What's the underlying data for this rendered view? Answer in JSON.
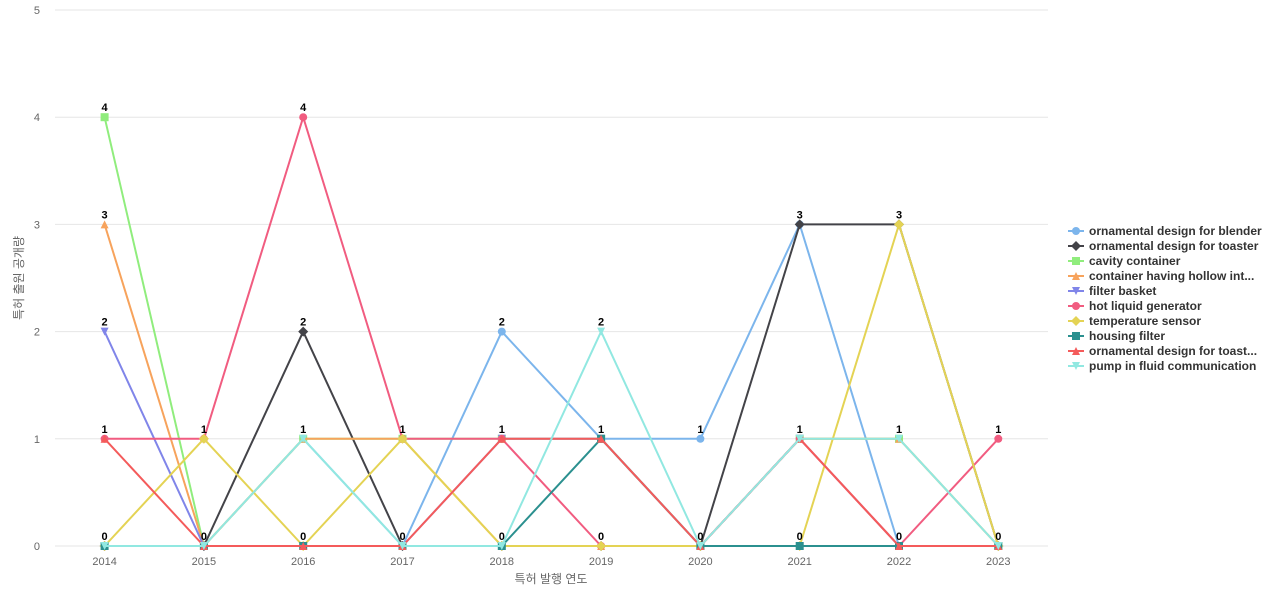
{
  "chart_data": {
    "type": "line",
    "title": "",
    "xlabel": "특허 발행 연도",
    "ylabel": "특허 출원 공개량",
    "x": [
      "2014",
      "2015",
      "2016",
      "2017",
      "2018",
      "2019",
      "2020",
      "2021",
      "2022",
      "2023"
    ],
    "yticks": [
      "0",
      "1",
      "2",
      "3",
      "4",
      "5"
    ],
    "ylim": [
      0,
      5
    ],
    "grid": true,
    "legend_position": "right",
    "series": [
      {
        "name": "ornamental design for blender",
        "color": "#7cb5ec",
        "marker": "circle",
        "values": [
          0,
          0,
          1,
          0,
          2,
          1,
          1,
          3,
          0,
          0
        ]
      },
      {
        "name": "ornamental design for toaster",
        "color": "#434348",
        "marker": "diamond",
        "values": [
          0,
          0,
          2,
          0,
          0,
          0,
          0,
          3,
          3,
          0
        ]
      },
      {
        "name": "cavity container",
        "color": "#90ed7d",
        "marker": "square",
        "values": [
          4,
          0,
          1,
          1,
          1,
          1,
          0,
          1,
          1,
          0
        ]
      },
      {
        "name": "container having hollow int...",
        "color": "#f7a35c",
        "marker": "triangle",
        "values": [
          3,
          0,
          1,
          1,
          0,
          0,
          0,
          1,
          1,
          0
        ]
      },
      {
        "name": "filter basket",
        "color": "#8085e9",
        "marker": "triangle-down",
        "values": [
          2,
          0,
          0,
          0,
          1,
          1,
          0,
          1,
          0,
          0
        ]
      },
      {
        "name": "hot liquid generator",
        "color": "#f15c80",
        "marker": "circle",
        "values": [
          1,
          1,
          4,
          1,
          1,
          0,
          0,
          1,
          0,
          1
        ]
      },
      {
        "name": "temperature sensor",
        "color": "#e4d354",
        "marker": "diamond",
        "values": [
          0,
          1,
          0,
          1,
          0,
          0,
          0,
          0,
          3,
          0
        ]
      },
      {
        "name": "housing filter",
        "color": "#2b908f",
        "marker": "square",
        "values": [
          0,
          0,
          0,
          0,
          0,
          1,
          0,
          0,
          0,
          0
        ]
      },
      {
        "name": "ornamental design for toast...",
        "color": "#f45b5b",
        "marker": "triangle",
        "values": [
          1,
          0,
          0,
          0,
          1,
          1,
          0,
          1,
          0,
          0
        ]
      },
      {
        "name": "pump in fluid communication",
        "color": "#91e8e1",
        "marker": "triangle-down",
        "values": [
          0,
          0,
          1,
          0,
          0,
          2,
          0,
          1,
          1,
          0
        ]
      }
    ],
    "point_labels": [
      {
        "x": "2014",
        "text": "4",
        "value": 4
      },
      {
        "x": "2014",
        "text": "3",
        "value": 3
      },
      {
        "x": "2014",
        "text": "2",
        "value": 2
      },
      {
        "x": "2014",
        "text": "1",
        "value": 1
      },
      {
        "x": "2014",
        "text": "0",
        "value": 0
      },
      {
        "x": "2015",
        "text": "1",
        "value": 1
      },
      {
        "x": "2015",
        "text": "0",
        "value": 0
      },
      {
        "x": "2016",
        "text": "4",
        "value": 4
      },
      {
        "x": "2016",
        "text": "2",
        "value": 2
      },
      {
        "x": "2016",
        "text": "1",
        "value": 1
      },
      {
        "x": "2016",
        "text": "0",
        "value": 0
      },
      {
        "x": "2017",
        "text": "1",
        "value": 1
      },
      {
        "x": "2017",
        "text": "0",
        "value": 0
      },
      {
        "x": "2018",
        "text": "2",
        "value": 2
      },
      {
        "x": "2018",
        "text": "1",
        "value": 1
      },
      {
        "x": "2018",
        "text": "0",
        "value": 0
      },
      {
        "x": "2019",
        "text": "2",
        "value": 2
      },
      {
        "x": "2019",
        "text": "1",
        "value": 1
      },
      {
        "x": "2019",
        "text": "0",
        "value": 0
      },
      {
        "x": "2020",
        "text": "1",
        "value": 1
      },
      {
        "x": "2020",
        "text": "0",
        "value": 0
      },
      {
        "x": "2021",
        "text": "3",
        "value": 3
      },
      {
        "x": "2021",
        "text": "1",
        "value": 1
      },
      {
        "x": "2021",
        "text": "0",
        "value": 0
      },
      {
        "x": "2022",
        "text": "3",
        "value": 3
      },
      {
        "x": "2022",
        "text": "1",
        "value": 1
      },
      {
        "x": "2022",
        "text": "0",
        "value": 0
      },
      {
        "x": "2023",
        "text": "1",
        "value": 1
      },
      {
        "x": "2023",
        "text": "0",
        "value": 0
      }
    ]
  }
}
